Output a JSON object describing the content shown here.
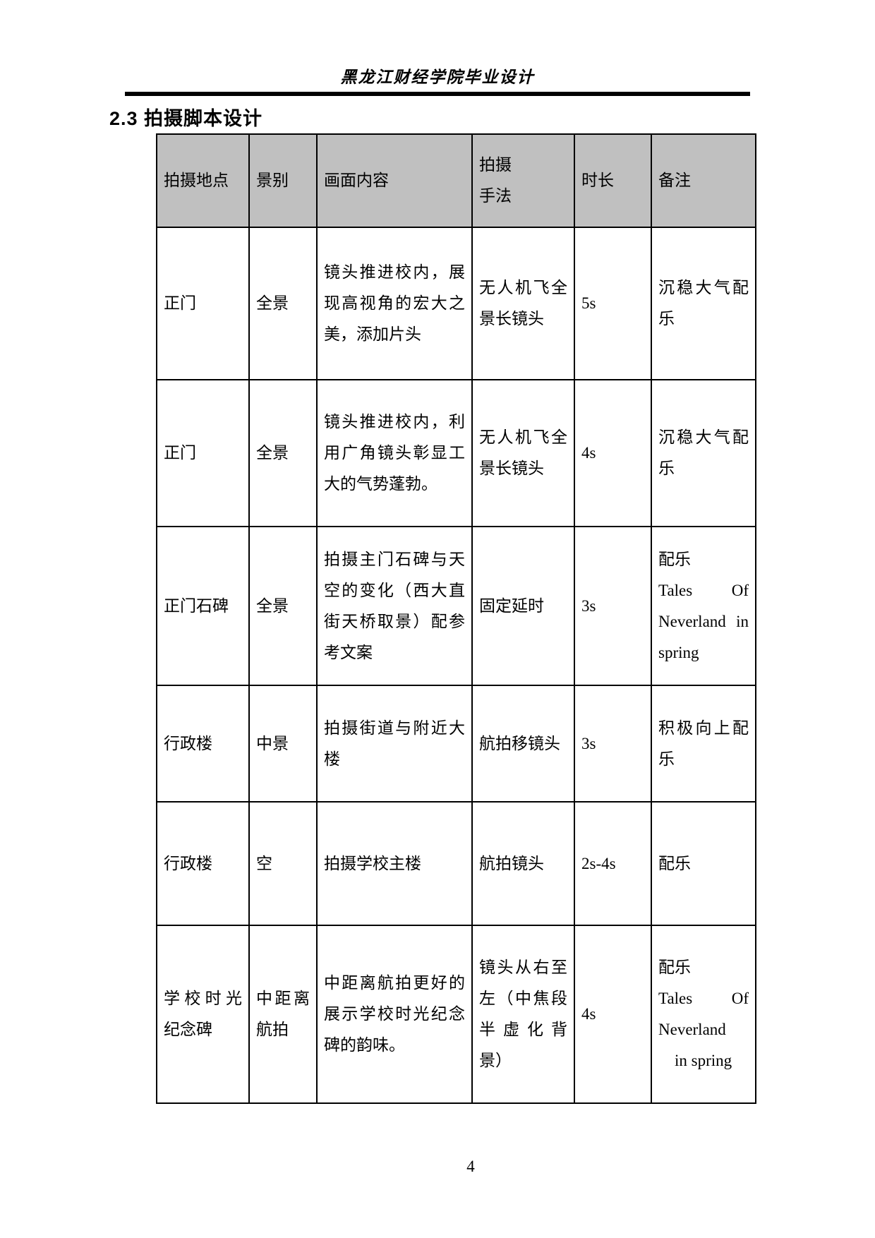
{
  "page": {
    "header_title": "黑龙江财经学院毕业设计",
    "section_heading": "2.3 拍摄脚本设计",
    "page_number": "4"
  },
  "table": {
    "header_bg": "#c0c0c0",
    "columns": [
      {
        "key": "location",
        "label": "拍摄地点"
      },
      {
        "key": "shot-type",
        "label": "景别"
      },
      {
        "key": "content",
        "label": "画面内容"
      },
      {
        "key": "technique",
        "label": "拍摄\n手法"
      },
      {
        "key": "duration",
        "label": "时长"
      },
      {
        "key": "notes",
        "label": "备注"
      }
    ],
    "rows": [
      {
        "location": "正门",
        "shot_type": "全景",
        "content": "镜头推进校内，展现高视角的宏大之美，添加片头",
        "technique": "无人机飞全景长镜头",
        "duration": "5s",
        "notes": "沉稳大气配乐"
      },
      {
        "location": "正门",
        "shot_type": "全景",
        "content": "镜头推进校内，利用广角镜头彰显工大的气势蓬勃。",
        "technique": "无人机飞全景长镜头",
        "duration": "4s",
        "notes": "沉稳大气配乐"
      },
      {
        "location": "正门石碑",
        "shot_type": "全景",
        "content": "拍摄主门石碑与天空的变化（西大直街天桥取景）配参考文案",
        "technique": "固定延时",
        "duration": "3s",
        "notes": "配乐\nTales Of Neverland in spring"
      },
      {
        "location": "行政楼",
        "shot_type": "中景",
        "content": "拍摄街道与附近大楼",
        "technique": "航拍移镜头",
        "duration": "3s",
        "notes": "积极向上配乐"
      },
      {
        "location": "行政楼",
        "shot_type": "空",
        "content": "拍摄学校主楼",
        "technique": "航拍镜头",
        "duration": "2s-4s",
        "notes": "配乐"
      },
      {
        "location": "学校时光纪念碑",
        "shot_type": "中距离航拍",
        "content": "中距离航拍更好的展示学校时光纪念碑的韵味。",
        "technique": "镜头从右至左（中焦段半虚化背景）",
        "duration": "4s",
        "notes": "配乐\nTales Of Neverland\n　in spring"
      }
    ]
  }
}
